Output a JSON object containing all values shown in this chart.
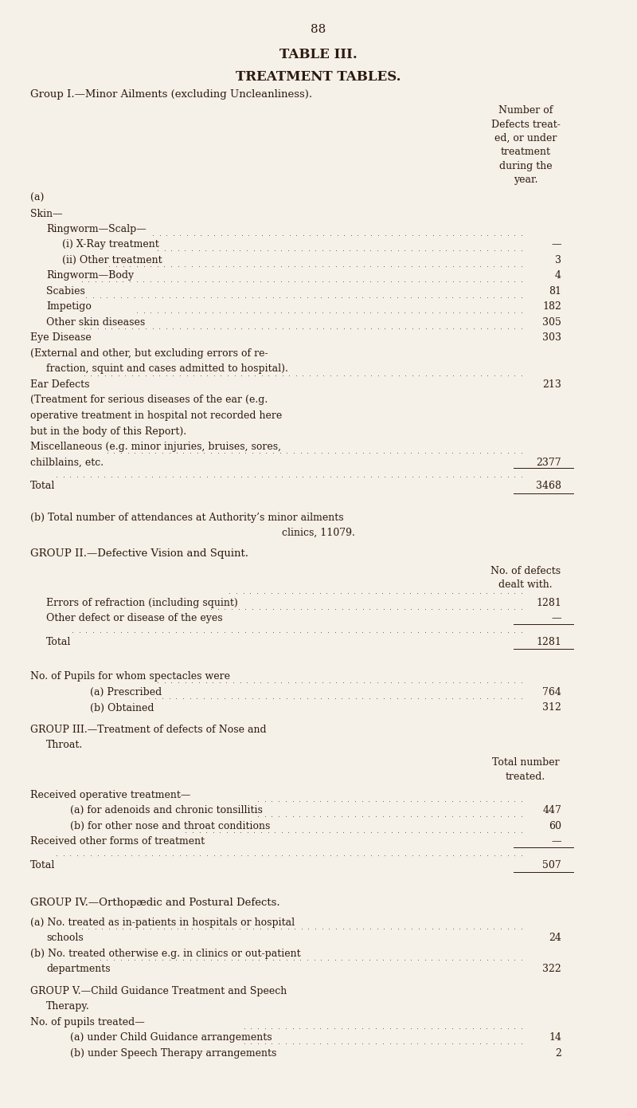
{
  "bg_color": "#f5f0e8",
  "text_color": "#2d1a0e",
  "page_number": "88",
  "title1": "TABLE III.",
  "title2": "TREATMENT TABLES.",
  "group1_header": "Group I.—Minor Ailments (excluding Uncleanliness).",
  "col_header_lines": [
    "Number of",
    "Defects treat-",
    "ed, or under",
    "treatment",
    "during the",
    "year."
  ],
  "group1_items": [
    {
      "indent": 0,
      "text": "(a)",
      "value": ""
    },
    {
      "indent": 0,
      "text": "Skin—",
      "value": ""
    },
    {
      "indent": 1,
      "text": "Ringworm—Scalp—",
      "value": ""
    },
    {
      "indent": 2,
      "text": "(i) X-Ray treatment",
      "dots": true,
      "value": "—"
    },
    {
      "indent": 2,
      "text": "(ii) Other treatment",
      "dots": true,
      "value": "3"
    },
    {
      "indent": 1,
      "text": "Ringworm—Body",
      "dots": true,
      "value": "4"
    },
    {
      "indent": 1,
      "text": "Scabies",
      "dots": true,
      "value": "81"
    },
    {
      "indent": 1,
      "text": "Impetigo",
      "dots": true,
      "value": "182"
    },
    {
      "indent": 1,
      "text": "Other skin diseases",
      "dots": true,
      "value": "305"
    },
    {
      "indent": 0,
      "text": "Eye Disease",
      "dots": true,
      "value": "303"
    },
    {
      "indent": 0,
      "text": "(External and other, but excluding errors of re-",
      "value": ""
    },
    {
      "indent": 1,
      "text": "fraction, squint and cases admitted to hospital).",
      "value": ""
    },
    {
      "indent": 0,
      "text": "Ear Defects",
      "dots": true,
      "value": "213"
    },
    {
      "indent": 0,
      "text": "(Treatment for serious diseases of the ear (e.g.",
      "value": ""
    },
    {
      "indent": 0,
      "text": "operative treatment in hospital not recorded here",
      "value": ""
    },
    {
      "indent": 0,
      "text": "but in the body of this Report).",
      "value": ""
    },
    {
      "indent": 0,
      "text": "Miscellaneous (e.g. minor injuries, bruises, sores,",
      "value": ""
    },
    {
      "indent": 0,
      "text": "chilblains, etc.",
      "dots": true,
      "value": "2377"
    },
    {
      "indent": 0,
      "text": "SPACER",
      "value": ""
    },
    {
      "indent": 0,
      "text": "Total",
      "dots": true,
      "value": "3468",
      "total": true
    },
    {
      "indent": 0,
      "text": "SPACER",
      "value": ""
    }
  ],
  "group1_note": "(b) Total number of attendances at Authority’s minor ailments",
  "group1_note2": "clinics, 11079.",
  "group2_header": "GROUP II.—Defective Vision and Squint.",
  "group2_col_header": [
    "No. of defects",
    "dealt with."
  ],
  "group2_items": [
    {
      "text": "Errors of refraction (including squint)",
      "dots": true,
      "value": "1281"
    },
    {
      "text": "Other defect or disease of the eyes",
      "dots": true,
      "value": "—"
    },
    {
      "text": "SPACER",
      "value": ""
    },
    {
      "text": "Total",
      "dots": true,
      "value": "1281",
      "total": true
    },
    {
      "text": "SPACER",
      "value": ""
    }
  ],
  "group2_spectacles_header": "No. of Pupils for whom spectacles were",
  "group2_spectacles": [
    {
      "text": "(a) Prescribed",
      "dots": true,
      "value": "764"
    },
    {
      "text": "(b) Obtained",
      "dots": true,
      "value": "312"
    }
  ],
  "group3_header": "GROUP III.—Treatment of defects of Nose and",
  "group3_header2": "Throat.",
  "group3_col_header": [
    "Total number",
    "treated."
  ],
  "group3_items": [
    {
      "text": "Received operative treatment—",
      "value": ""
    },
    {
      "text": "(a) for adenoids and chronic tonsillitis",
      "dots": true,
      "value": "447",
      "indent": 2
    },
    {
      "text": "(b) for other nose and throat conditions",
      "dots": true,
      "value": "60",
      "indent": 2
    },
    {
      "text": "Received other forms of treatment",
      "dots": true,
      "value": "—"
    },
    {
      "text": "SPACER",
      "value": ""
    },
    {
      "text": "Total",
      "dots": true,
      "value": "507",
      "total": true
    },
    {
      "text": "SPACER",
      "value": ""
    }
  ],
  "group4_header": "GROUP IV.—Orthopædic and Postural Defects.",
  "group4_items": [
    {
      "text": "(a) No. treated as in-patients in hospitals or hospital",
      "value": ""
    },
    {
      "text": "schools",
      "dots": true,
      "value": "24",
      "indent": 1
    },
    {
      "text": "(b) No. treated otherwise e.g. in clinics or out-patient",
      "value": ""
    },
    {
      "text": "departments",
      "dots": true,
      "value": "322",
      "indent": 1
    }
  ],
  "group5_header": "GROUP V.—Child Guidance Treatment and Speech",
  "group5_header2": "Therapy.",
  "group5_subheader": "No. of pupils treated—",
  "group5_items": [
    {
      "text": "(a) under Child Guidance arrangements",
      "dots": true,
      "value": "14"
    },
    {
      "text": "(b) under Speech Therapy arrangements",
      "dots": true,
      "value": "2"
    }
  ],
  "figwidth": 8.0,
  "figheight": 13.9,
  "dpi": 100
}
